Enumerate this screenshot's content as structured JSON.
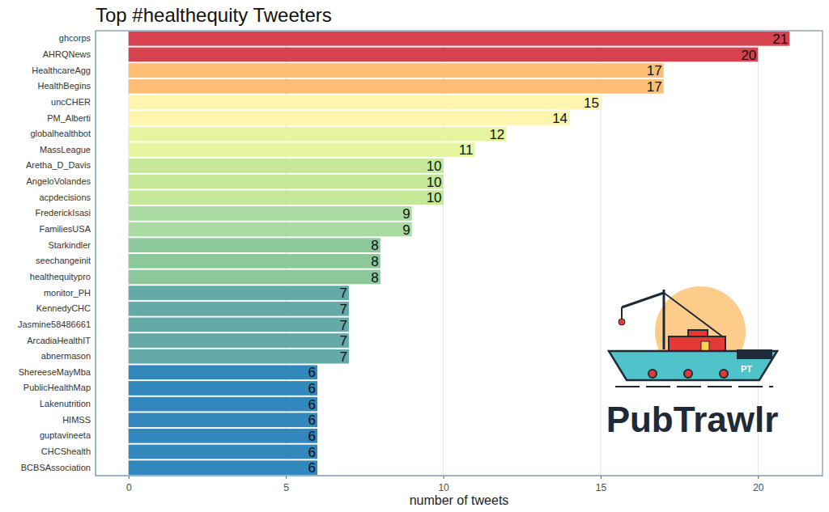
{
  "chart_data": {
    "type": "bar",
    "orientation": "horizontal",
    "title": "Top #healthequity Tweeters",
    "x_label": "number of tweets",
    "categories": [
      "ghcorps",
      "AHRQNews",
      "HealthcareAgg",
      "HealthBegins",
      "uncCHER",
      "PM_Alberti",
      "globalhealthbot",
      "MassLeague",
      "Aretha_D_Davis",
      "AngeloVolandes",
      "acpdecisions",
      "FrederickIsasi",
      "FamiliesUSA",
      "Starkindler",
      "seechangeinit",
      "healthequitypro",
      "monitor_PH",
      "KennedyCHC",
      "Jasmine58486661",
      "ArcadiaHealthIT",
      "abnermason",
      "ShereeseMayMba",
      "PublicHealthMap",
      "Lakenutrition",
      "HIMSS",
      "guptavineeta",
      "CHCShealth",
      "BCBSAssociation"
    ],
    "values": [
      21,
      20,
      17,
      17,
      15,
      14,
      12,
      11,
      10,
      10,
      10,
      9,
      9,
      8,
      8,
      8,
      7,
      7,
      7,
      7,
      7,
      6,
      6,
      6,
      6,
      6,
      6,
      6
    ],
    "colors": [
      "#d7424f",
      "#d7424f",
      "#fdbe74",
      "#fdbe74",
      "#fff5ae",
      "#fff5ae",
      "#e6f5a0",
      "#e6f5a0",
      "#c5e897",
      "#c5e897",
      "#c5e897",
      "#a9dba2",
      "#a9dba2",
      "#8dc89a",
      "#8dc89a",
      "#8dc89a",
      "#66a9a9",
      "#66a9a9",
      "#66a9a9",
      "#66a9a9",
      "#66a9a9",
      "#3288bd",
      "#3288bd",
      "#3288bd",
      "#3288bd",
      "#3288bd",
      "#3288bd",
      "#3288bd"
    ],
    "xlim": [
      -1.05,
      22.05
    ],
    "xticks": [
      0,
      5,
      10,
      15,
      20
    ],
    "grid": true,
    "data_labels": true,
    "annotations": [
      "PubTrawlr",
      "PT"
    ]
  }
}
